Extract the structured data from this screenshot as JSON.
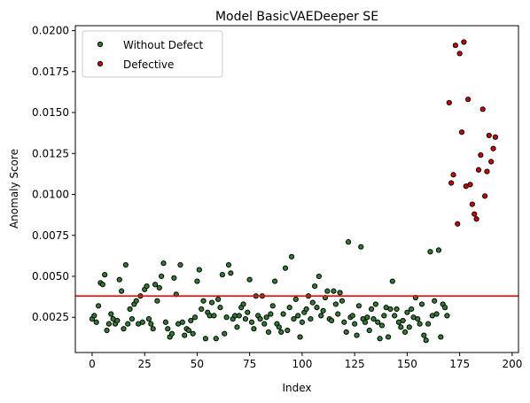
{
  "chart_data": {
    "type": "scatter",
    "title": "Model BasicVAEDeeper SE",
    "xlabel": "Index",
    "ylabel": "Anomaly Score",
    "xlim": [
      -8,
      203
    ],
    "ylim": [
      0.00035,
      0.0203
    ],
    "xticks": [
      0,
      25,
      50,
      75,
      100,
      125,
      150,
      175,
      200
    ],
    "yticks": [
      0.0025,
      0.005,
      0.0075,
      0.01,
      0.0125,
      0.015,
      0.0175,
      0.02
    ],
    "ytick_labels": [
      "0.0025",
      "0.0050",
      "0.0075",
      "0.0100",
      "0.0125",
      "0.0150",
      "0.0175",
      "0.0200"
    ],
    "grid": false,
    "legend_position": "top-left",
    "threshold": {
      "y": 0.0038,
      "color": "#ff0000"
    },
    "series": [
      {
        "name": "Without Defect",
        "color": "#2e7d32",
        "points": [
          [
            0,
            0.0024
          ],
          [
            1,
            0.0026
          ],
          [
            2,
            0.0022
          ],
          [
            3,
            0.0032
          ],
          [
            4,
            0.0046
          ],
          [
            5,
            0.0045
          ],
          [
            6,
            0.0051
          ],
          [
            7,
            0.0017
          ],
          [
            8,
            0.0021
          ],
          [
            9,
            0.0027
          ],
          [
            10,
            0.0024
          ],
          [
            11,
            0.0021
          ],
          [
            12,
            0.0023
          ],
          [
            13,
            0.0048
          ],
          [
            14,
            0.0041
          ],
          [
            15,
            0.0018
          ],
          [
            16,
            0.0057
          ],
          [
            17,
            0.0021
          ],
          [
            18,
            0.003
          ],
          [
            19,
            0.0024
          ],
          [
            20,
            0.0033
          ],
          [
            21,
            0.0035
          ],
          [
            22,
            0.0021
          ],
          [
            23,
            0.0038
          ],
          [
            24,
            0.0022
          ],
          [
            25,
            0.0042
          ],
          [
            26,
            0.0044
          ],
          [
            27,
            0.0024
          ],
          [
            28,
            0.0021
          ],
          [
            29,
            0.0018
          ],
          [
            30,
            0.0045
          ],
          [
            31,
            0.0035
          ],
          [
            32,
            0.0043
          ],
          [
            33,
            0.005
          ],
          [
            34,
            0.0058
          ],
          [
            35,
            0.0022
          ],
          [
            36,
            0.0018
          ],
          [
            37,
            0.0013
          ],
          [
            38,
            0.0015
          ],
          [
            39,
            0.0049
          ],
          [
            40,
            0.0039
          ],
          [
            41,
            0.0021
          ],
          [
            42,
            0.0057
          ],
          [
            43,
            0.0022
          ],
          [
            44,
            0.0014
          ],
          [
            45,
            0.0018
          ],
          [
            46,
            0.0017
          ],
          [
            47,
            0.0023
          ],
          [
            48,
            0.0015
          ],
          [
            49,
            0.0025
          ],
          [
            50,
            0.0047
          ],
          [
            51,
            0.0054
          ],
          [
            52,
            0.003
          ],
          [
            53,
            0.0035
          ],
          [
            54,
            0.0012
          ],
          [
            55,
            0.0028
          ],
          [
            56,
            0.0026
          ],
          [
            57,
            0.0034
          ],
          [
            58,
            0.0026
          ],
          [
            59,
            0.0012
          ],
          [
            60,
            0.0036
          ],
          [
            61,
            0.0031
          ],
          [
            62,
            0.0051
          ],
          [
            63,
            0.0015
          ],
          [
            64,
            0.0025
          ],
          [
            65,
            0.0057
          ],
          [
            66,
            0.0052
          ],
          [
            67,
            0.0024
          ],
          [
            68,
            0.0026
          ],
          [
            69,
            0.0019
          ],
          [
            70,
            0.0026
          ],
          [
            71,
            0.0031
          ],
          [
            72,
            0.0033
          ],
          [
            73,
            0.0024
          ],
          [
            74,
            0.0028
          ],
          [
            75,
            0.0048
          ],
          [
            76,
            0.0022
          ],
          [
            77,
            0.0018
          ],
          [
            78,
            0.0038
          ],
          [
            79,
            0.0026
          ],
          [
            80,
            0.0024
          ],
          [
            81,
            0.0038
          ],
          [
            82,
            0.0021
          ],
          [
            83,
            0.0025
          ],
          [
            84,
            0.0016
          ],
          [
            85,
            0.0027
          ],
          [
            86,
            0.0032
          ],
          [
            87,
            0.0047
          ],
          [
            88,
            0.0021
          ],
          [
            89,
            0.0019
          ],
          [
            90,
            0.0016
          ],
          [
            91,
            0.0027
          ],
          [
            92,
            0.0055
          ],
          [
            93,
            0.0017
          ],
          [
            94,
            0.0031
          ],
          [
            95,
            0.0062
          ],
          [
            96,
            0.0024
          ],
          [
            97,
            0.0036
          ],
          [
            98,
            0.0026
          ],
          [
            99,
            0.0013
          ],
          [
            100,
            0.0022
          ],
          [
            101,
            0.0028
          ],
          [
            102,
            0.003
          ],
          [
            103,
            0.0038
          ],
          [
            104,
            0.0024
          ],
          [
            105,
            0.0034
          ],
          [
            106,
            0.0044
          ],
          [
            107,
            0.0031
          ],
          [
            108,
            0.005
          ],
          [
            109,
            0.0026
          ],
          [
            110,
            0.0029
          ],
          [
            111,
            0.0037
          ],
          [
            112,
            0.0041
          ],
          [
            113,
            0.0024
          ],
          [
            114,
            0.0023
          ],
          [
            115,
            0.0041
          ],
          [
            116,
            0.0033
          ],
          [
            117,
            0.0027
          ],
          [
            118,
            0.004
          ],
          [
            119,
            0.0035
          ],
          [
            120,
            0.0022
          ],
          [
            121,
            0.0016
          ],
          [
            122,
            0.0071
          ],
          [
            123,
            0.0025
          ],
          [
            124,
            0.0026
          ],
          [
            125,
            0.0021
          ],
          [
            126,
            0.0014
          ],
          [
            127,
            0.0032
          ],
          [
            128,
            0.0068
          ],
          [
            129,
            0.0024
          ],
          [
            130,
            0.0022
          ],
          [
            131,
            0.0025
          ],
          [
            132,
            0.0017
          ],
          [
            133,
            0.003
          ],
          [
            134,
            0.0024
          ],
          [
            135,
            0.0033
          ],
          [
            136,
            0.0022
          ],
          [
            137,
            0.0012
          ],
          [
            138,
            0.002
          ],
          [
            139,
            0.0026
          ],
          [
            140,
            0.0031
          ],
          [
            141,
            0.0013
          ],
          [
            142,
            0.003
          ],
          [
            143,
            0.0047
          ],
          [
            144,
            0.0026
          ],
          [
            145,
            0.003
          ],
          [
            146,
            0.0022
          ],
          [
            147,
            0.0019
          ],
          [
            148,
            0.0023
          ],
          [
            149,
            0.0016
          ],
          [
            150,
            0.0028
          ],
          [
            151,
            0.0019
          ],
          [
            152,
            0.003
          ],
          [
            153,
            0.0025
          ],
          [
            154,
            0.0037
          ],
          [
            155,
            0.0024
          ],
          [
            156,
            0.0021
          ],
          [
            157,
            0.0033
          ],
          [
            158,
            0.0014
          ],
          [
            159,
            0.0011
          ],
          [
            160,
            0.0021
          ],
          [
            161,
            0.0065
          ],
          [
            162,
            0.0026
          ],
          [
            163,
            0.0035
          ],
          [
            164,
            0.0027
          ],
          [
            165,
            0.0066
          ],
          [
            166,
            0.0013
          ],
          [
            167,
            0.0033
          ],
          [
            168,
            0.0031
          ],
          [
            169,
            0.0026
          ]
        ]
      },
      {
        "name": "Defective",
        "color": "#d50000",
        "points": [
          [
            170,
            0.0156
          ],
          [
            171,
            0.0107
          ],
          [
            172,
            0.0112
          ],
          [
            173,
            0.0191
          ],
          [
            174,
            0.0082
          ],
          [
            175,
            0.0186
          ],
          [
            176,
            0.0138
          ],
          [
            177,
            0.0193
          ],
          [
            178,
            0.0105
          ],
          [
            179,
            0.0158
          ],
          [
            180,
            0.0106
          ],
          [
            181,
            0.0094
          ],
          [
            182,
            0.0088
          ],
          [
            183,
            0.0085
          ],
          [
            184,
            0.0115
          ],
          [
            185,
            0.0124
          ],
          [
            186,
            0.0152
          ],
          [
            187,
            0.0099
          ],
          [
            188,
            0.0114
          ],
          [
            189,
            0.0136
          ],
          [
            190,
            0.012
          ],
          [
            191,
            0.0128
          ],
          [
            192,
            0.0135
          ]
        ]
      }
    ]
  }
}
